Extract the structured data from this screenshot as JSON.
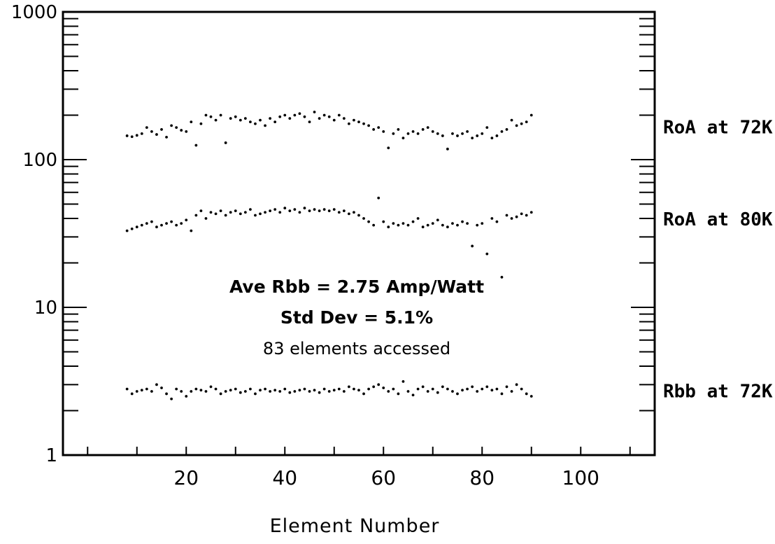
{
  "chart_data": {
    "type": "scatter",
    "xlabel": "Element Number",
    "ylabel": "",
    "yscale": "log",
    "xlim": [
      -5,
      115
    ],
    "ylim": [
      1,
      1000
    ],
    "xticks": [
      20,
      40,
      60,
      80,
      100
    ],
    "yticks": [
      1,
      10,
      100,
      1000
    ],
    "grid": false,
    "annotations": [
      "Ave Rbb = 2.75 Amp/Watt",
      "Std Dev = 5.1%",
      "83 elements accessed"
    ],
    "series": [
      {
        "name": "RoA at 72K",
        "x": [
          8,
          9,
          10,
          11,
          12,
          13,
          14,
          15,
          16,
          17,
          18,
          19,
          20,
          21,
          22,
          23,
          24,
          25,
          26,
          27,
          28,
          29,
          30,
          31,
          32,
          33,
          34,
          35,
          36,
          37,
          38,
          39,
          40,
          41,
          42,
          43,
          44,
          45,
          46,
          47,
          48,
          49,
          50,
          51,
          52,
          53,
          54,
          55,
          56,
          57,
          58,
          59,
          60,
          61,
          62,
          63,
          64,
          65,
          66,
          67,
          68,
          69,
          70,
          71,
          72,
          73,
          74,
          75,
          76,
          77,
          78,
          79,
          80,
          81,
          82,
          83,
          84,
          85,
          86,
          87,
          88,
          89,
          90
        ],
        "y": [
          145,
          143,
          146,
          150,
          165,
          155,
          148,
          160,
          142,
          170,
          165,
          158,
          155,
          180,
          125,
          175,
          200,
          195,
          185,
          200,
          130,
          190,
          195,
          185,
          190,
          180,
          175,
          185,
          170,
          190,
          180,
          195,
          200,
          190,
          200,
          205,
          195,
          180,
          210,
          190,
          200,
          195,
          185,
          200,
          190,
          175,
          185,
          180,
          175,
          170,
          160,
          165,
          155,
          120,
          150,
          160,
          140,
          150,
          155,
          150,
          160,
          165,
          155,
          150,
          145,
          118,
          150,
          145,
          150,
          155,
          140,
          145,
          150,
          165,
          140,
          145,
          155,
          160,
          185,
          170,
          175,
          180,
          200
        ]
      },
      {
        "name": "RoA at 80K",
        "x": [
          8,
          9,
          10,
          11,
          12,
          13,
          14,
          15,
          16,
          17,
          18,
          19,
          20,
          21,
          22,
          23,
          24,
          25,
          26,
          27,
          28,
          29,
          30,
          31,
          32,
          33,
          34,
          35,
          36,
          37,
          38,
          39,
          40,
          41,
          42,
          43,
          44,
          45,
          46,
          47,
          48,
          49,
          50,
          51,
          52,
          53,
          54,
          55,
          56,
          57,
          58,
          59,
          60,
          61,
          62,
          63,
          64,
          65,
          66,
          67,
          68,
          69,
          70,
          71,
          72,
          73,
          74,
          75,
          76,
          77,
          78,
          79,
          80,
          81,
          82,
          83,
          84,
          85,
          86,
          87,
          88,
          89,
          90
        ],
        "y": [
          33,
          34,
          35,
          36,
          37,
          38,
          35,
          36,
          37,
          38,
          36,
          37,
          39,
          33,
          42,
          45,
          40,
          44,
          43,
          45,
          42,
          44,
          45,
          43,
          44,
          46,
          42,
          43,
          44,
          45,
          46,
          44,
          47,
          45,
          46,
          44,
          47,
          45,
          46,
          45,
          46,
          45,
          46,
          44,
          45,
          43,
          44,
          42,
          40,
          38,
          36,
          55,
          38,
          35,
          37,
          36,
          37,
          36,
          38,
          40,
          35,
          36,
          37,
          39,
          36,
          35,
          37,
          36,
          38,
          37,
          26,
          36,
          37,
          23,
          40,
          38,
          16,
          42,
          40,
          41,
          43,
          42,
          44
        ]
      },
      {
        "name": "Rbb at 72K",
        "x": [
          8,
          9,
          10,
          11,
          12,
          13,
          14,
          15,
          16,
          17,
          18,
          19,
          20,
          21,
          22,
          23,
          24,
          25,
          26,
          27,
          28,
          29,
          30,
          31,
          32,
          33,
          34,
          35,
          36,
          37,
          38,
          39,
          40,
          41,
          42,
          43,
          44,
          45,
          46,
          47,
          48,
          49,
          50,
          51,
          52,
          53,
          54,
          55,
          56,
          57,
          58,
          59,
          60,
          61,
          62,
          63,
          64,
          65,
          66,
          67,
          68,
          69,
          70,
          71,
          72,
          73,
          74,
          75,
          76,
          77,
          78,
          79,
          80,
          81,
          82,
          83,
          84,
          85,
          86,
          87,
          88,
          89,
          90
        ],
        "y": [
          2.8,
          2.6,
          2.7,
          2.75,
          2.8,
          2.7,
          3.0,
          2.85,
          2.6,
          2.4,
          2.8,
          2.7,
          2.5,
          2.7,
          2.8,
          2.75,
          2.7,
          2.9,
          2.8,
          2.6,
          2.7,
          2.75,
          2.8,
          2.65,
          2.7,
          2.8,
          2.6,
          2.75,
          2.8,
          2.7,
          2.75,
          2.7,
          2.8,
          2.65,
          2.7,
          2.75,
          2.8,
          2.7,
          2.75,
          2.65,
          2.8,
          2.7,
          2.75,
          2.8,
          2.7,
          2.9,
          2.8,
          2.75,
          2.6,
          2.8,
          2.9,
          3.0,
          2.85,
          2.7,
          2.8,
          2.6,
          3.15,
          2.7,
          2.55,
          2.8,
          2.9,
          2.7,
          2.8,
          2.65,
          2.9,
          2.8,
          2.7,
          2.6,
          2.75,
          2.8,
          2.9,
          2.7,
          2.8,
          2.9,
          2.75,
          2.8,
          2.6,
          2.9,
          2.7,
          3.0,
          2.8,
          2.6,
          2.5
        ]
      }
    ]
  }
}
